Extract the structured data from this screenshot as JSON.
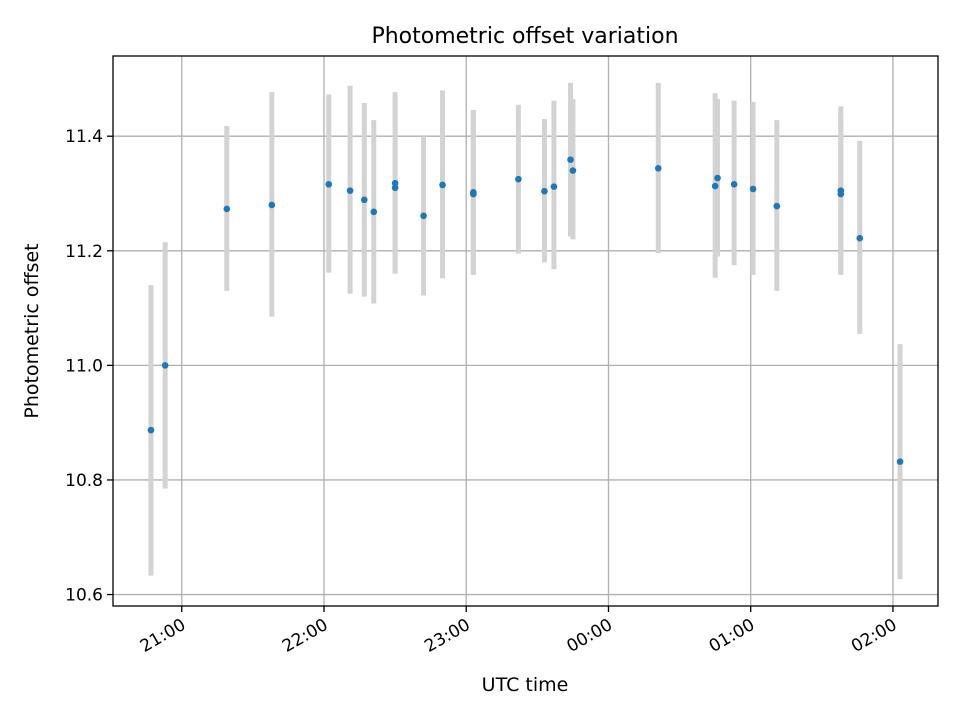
{
  "chart_data": {
    "type": "scatter",
    "title": "Photometric offset variation",
    "xlabel": "UTC time",
    "ylabel": "Photometric offset",
    "x_ticks": [
      "21:00",
      "22:00",
      "23:00",
      "00:00",
      "01:00",
      "02:00"
    ],
    "x_tick_minutes": [
      1260,
      1320,
      1380,
      1440,
      1500,
      1560
    ],
    "xlim_minutes": [
      1231,
      1579
    ],
    "y_ticks": [
      "10.6",
      "10.8",
      "11.0",
      "11.2",
      "11.4"
    ],
    "y_tick_values": [
      10.6,
      10.8,
      11.0,
      11.2,
      11.4
    ],
    "ylim": [
      10.58,
      11.54
    ],
    "grid": true,
    "point_color": "#1f77b4",
    "errorbar_color": "#d3d3d3",
    "series": [
      {
        "points": [
          {
            "t": "20:47",
            "y": 10.887,
            "low": 10.633,
            "high": 11.14
          },
          {
            "t": "20:53",
            "y": 11.0,
            "low": 10.785,
            "high": 11.215
          },
          {
            "t": "21:19",
            "y": 11.273,
            "low": 11.13,
            "high": 11.418
          },
          {
            "t": "21:38",
            "y": 11.28,
            "low": 11.085,
            "high": 11.477
          },
          {
            "t": "22:02",
            "y": 11.316,
            "low": 11.162,
            "high": 11.473
          },
          {
            "t": "22:11",
            "y": 11.305,
            "low": 11.125,
            "high": 11.488
          },
          {
            "t": "22:17",
            "y": 11.289,
            "low": 11.12,
            "high": 11.458
          },
          {
            "t": "22:21",
            "y": 11.268,
            "low": 11.108,
            "high": 11.428
          },
          {
            "t": "22:30",
            "y": 11.31,
            "low": 11.16,
            "high": 11.468
          },
          {
            "t": "22:30",
            "y": 11.318,
            "low": 11.165,
            "high": 11.477
          },
          {
            "t": "22:42",
            "y": 11.261,
            "low": 11.122,
            "high": 11.4
          },
          {
            "t": "22:50",
            "y": 11.315,
            "low": 11.152,
            "high": 11.48
          },
          {
            "t": "23:03",
            "y": 11.299,
            "low": 11.158,
            "high": 11.446
          },
          {
            "t": "23:03",
            "y": 11.302,
            "low": 11.16,
            "high": 11.44
          },
          {
            "t": "23:22",
            "y": 11.325,
            "low": 11.195,
            "high": 11.455
          },
          {
            "t": "23:33",
            "y": 11.304,
            "low": 11.18,
            "high": 11.43
          },
          {
            "t": "23:37",
            "y": 11.312,
            "low": 11.168,
            "high": 11.462
          },
          {
            "t": "23:44",
            "y": 11.359,
            "low": 11.225,
            "high": 11.493
          },
          {
            "t": "23:45",
            "y": 11.34,
            "low": 11.22,
            "high": 11.465
          },
          {
            "t": "00:21",
            "y": 11.344,
            "low": 11.196,
            "high": 11.493
          },
          {
            "t": "00:45",
            "y": 11.313,
            "low": 11.153,
            "high": 11.475
          },
          {
            "t": "00:46",
            "y": 11.327,
            "low": 11.19,
            "high": 11.465
          },
          {
            "t": "00:53",
            "y": 11.316,
            "low": 11.175,
            "high": 11.462
          },
          {
            "t": "01:01",
            "y": 11.308,
            "low": 11.158,
            "high": 11.46
          },
          {
            "t": "01:11",
            "y": 11.278,
            "low": 11.13,
            "high": 11.428
          },
          {
            "t": "01:38",
            "y": 11.305,
            "low": 11.158,
            "high": 11.452
          },
          {
            "t": "01:38",
            "y": 11.299,
            "low": 11.16,
            "high": 11.44
          },
          {
            "t": "01:46",
            "y": 11.222,
            "low": 11.055,
            "high": 11.392
          },
          {
            "t": "02:03",
            "y": 10.832,
            "low": 10.627,
            "high": 11.037
          }
        ]
      }
    ]
  }
}
